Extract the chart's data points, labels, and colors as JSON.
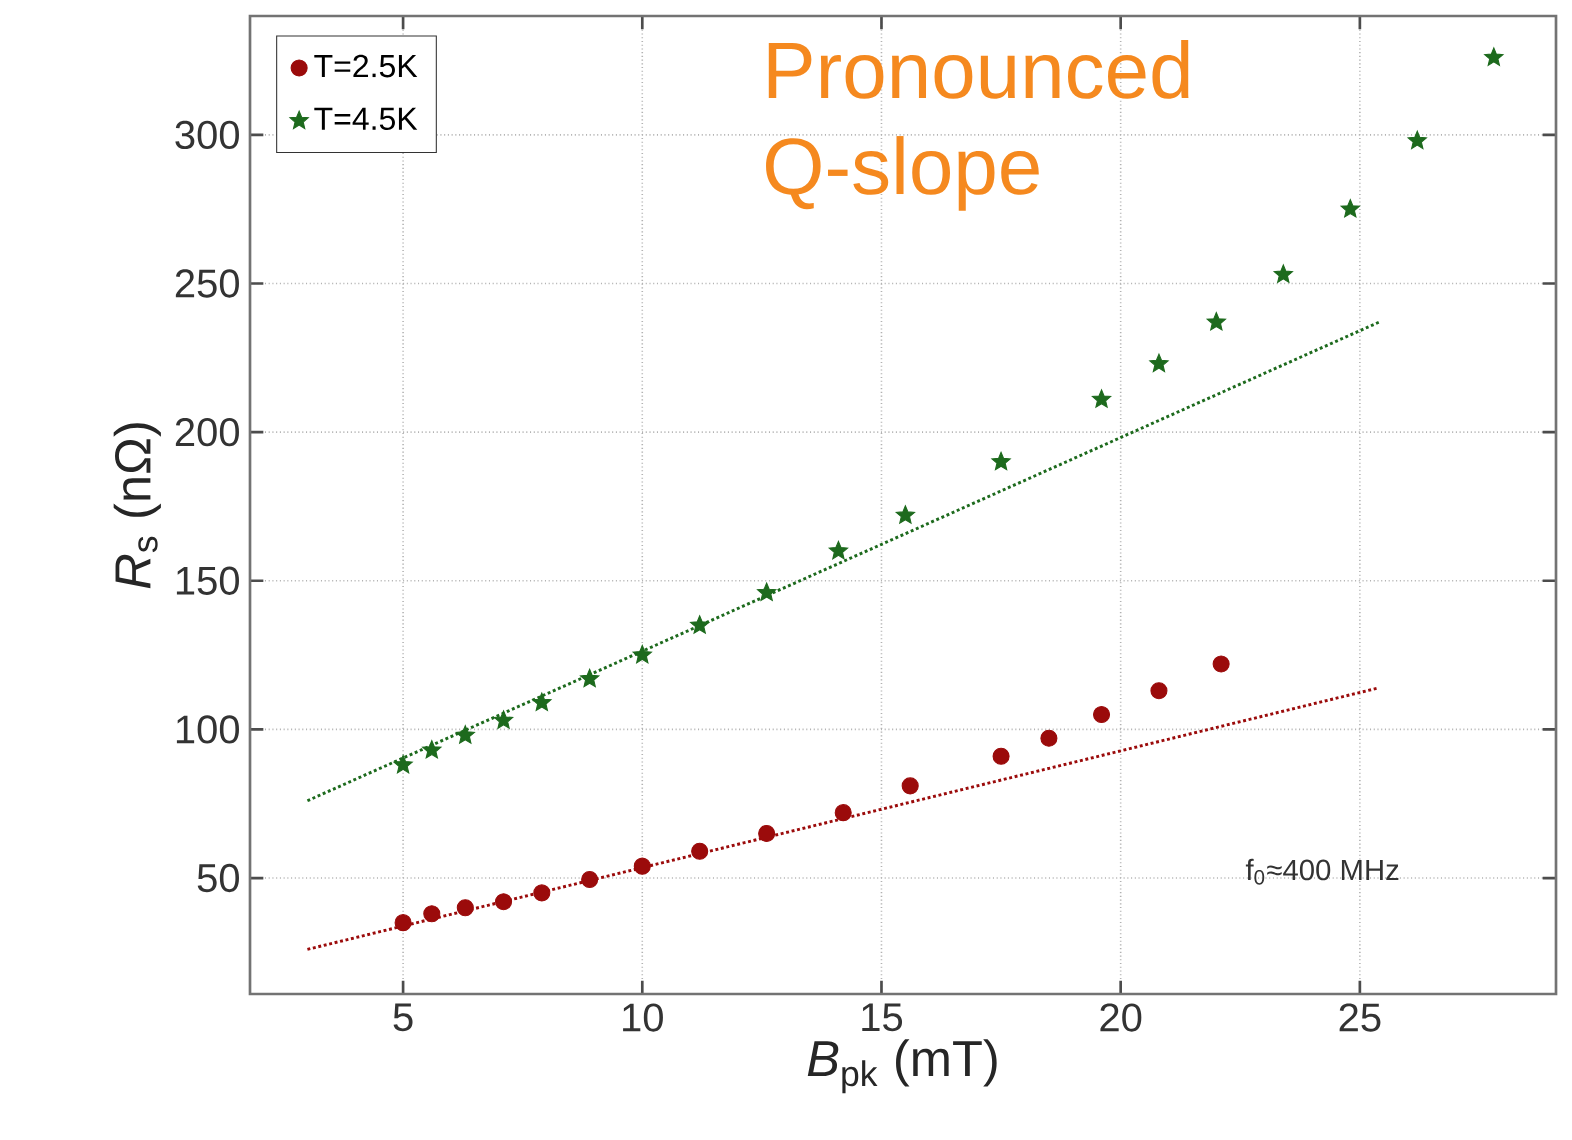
{
  "chart_data": {
    "type": "scatter",
    "xlabel": "*B*$_{pk}$ (mT)",
    "ylabel": "*R*$_{s}$ (nΩ)",
    "annotations": [
      "Pronounced Q-slope",
      "f$_{0}$≈400 MHz"
    ],
    "xlim": [
      1.8,
      29.1
    ],
    "ylim": [
      11,
      340
    ],
    "xticks": [
      5,
      10,
      15,
      20,
      25
    ],
    "yticks": [
      50,
      100,
      150,
      200,
      250,
      300
    ],
    "grid": true,
    "legend": "top left",
    "series": [
      {
        "name": "T=2.5K",
        "marker": "circle",
        "color": "#9b0b0b",
        "x": [
          5.0,
          5.6,
          6.3,
          7.1,
          7.9,
          8.9,
          10.0,
          11.2,
          12.6,
          14.2,
          15.6,
          17.5,
          18.5,
          19.6,
          20.8,
          22.1
        ],
        "values": [
          35,
          38,
          40,
          42,
          45,
          49.5,
          54,
          59,
          65,
          72,
          81,
          91,
          97,
          105,
          113,
          122
        ]
      },
      {
        "name": "T=4.5K",
        "marker": "star",
        "color": "#1d6a1d",
        "x": [
          5.0,
          5.6,
          6.3,
          7.1,
          7.9,
          8.9,
          10.0,
          11.2,
          12.6,
          14.1,
          15.5,
          17.5,
          19.6,
          20.8,
          22.0,
          23.4,
          24.8,
          26.2,
          27.8
        ],
        "values": [
          88,
          93,
          98,
          103,
          109,
          117,
          125,
          135,
          146,
          160,
          172,
          190,
          211,
          223,
          237,
          253,
          275,
          298,
          326
        ]
      },
      {
        "type": "line",
        "marker": "none",
        "line_style": "dotted",
        "color": "#9b0b0b",
        "x": [
          3.0,
          25.4
        ],
        "values": [
          26,
          114
        ]
      },
      {
        "type": "line",
        "marker": "none",
        "line_style": "dotted",
        "color": "#1d6a1d",
        "x": [
          3.0,
          25.4
        ],
        "values": [
          76,
          237
        ]
      }
    ]
  }
}
